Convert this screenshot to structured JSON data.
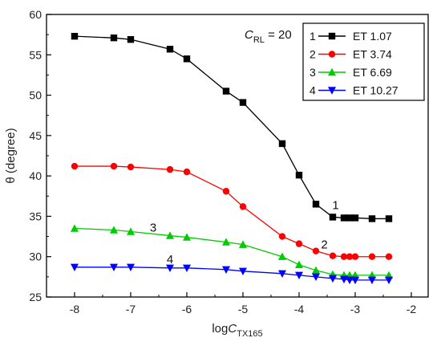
{
  "chart_data": {
    "type": "line",
    "xlabel": {
      "main": "log",
      "italic": "C",
      "sub": "TX165"
    },
    "ylabel": "θ (degree)",
    "xlim": [
      -8.5,
      -1.7
    ],
    "ylim": [
      25,
      60
    ],
    "xticks": [
      -8,
      -7,
      -6,
      -5,
      -4,
      -3,
      -2
    ],
    "yticks": [
      25,
      30,
      35,
      40,
      45,
      50,
      55,
      60
    ],
    "grid": false,
    "legend_position": "top-right",
    "inner_label": {
      "italic": "C",
      "sub": "RL",
      "rest": " = 20"
    },
    "series": [
      {
        "index": "1",
        "name": "ET 1.07",
        "color": "#000000",
        "marker": "square",
        "x": [
          -8,
          -7.3,
          -7,
          -6.3,
          -6,
          -5.3,
          -5,
          -4.3,
          -4,
          -3.7,
          -3.4,
          -3.2,
          -3.1,
          -3,
          -2.7,
          -2.4
        ],
        "y": [
          57.3,
          57.1,
          56.9,
          55.7,
          54.5,
          50.5,
          49.1,
          44.0,
          40.1,
          36.5,
          34.9,
          34.8,
          34.8,
          34.8,
          34.7,
          34.7
        ]
      },
      {
        "index": "2",
        "name": "ET 3.74",
        "color": "#ff0000",
        "marker": "circle",
        "x": [
          -8,
          -7.3,
          -7,
          -6.3,
          -6,
          -5.3,
          -5,
          -4.3,
          -4,
          -3.7,
          -3.4,
          -3.2,
          -3.1,
          -3,
          -2.7,
          -2.4
        ],
        "y": [
          41.2,
          41.2,
          41.1,
          40.8,
          40.5,
          38.1,
          36.2,
          32.5,
          31.6,
          30.7,
          30.1,
          30.0,
          30.0,
          30.0,
          30.0,
          30.0
        ]
      },
      {
        "index": "3",
        "name": "ET 6.69",
        "color": "#00cc00",
        "marker": "triangle-up",
        "x": [
          -8,
          -7.3,
          -7,
          -6.3,
          -6,
          -5.3,
          -5,
          -4.3,
          -4,
          -3.7,
          -3.4,
          -3.2,
          -3.1,
          -3,
          -2.7,
          -2.4
        ],
        "y": [
          33.5,
          33.3,
          33.1,
          32.6,
          32.4,
          31.8,
          31.5,
          30.0,
          29.0,
          28.3,
          27.8,
          27.7,
          27.7,
          27.7,
          27.7,
          27.7
        ]
      },
      {
        "index": "4",
        "name": "ET 10.27",
        "color": "#0000ff",
        "marker": "triangle-down",
        "x": [
          -8,
          -7.3,
          -7,
          -6.3,
          -6,
          -5.3,
          -5,
          -4.3,
          -4,
          -3.7,
          -3.4,
          -3.2,
          -3.1,
          -3,
          -2.7,
          -2.4
        ],
        "y": [
          28.7,
          28.7,
          28.7,
          28.6,
          28.6,
          28.4,
          28.2,
          27.9,
          27.7,
          27.5,
          27.3,
          27.2,
          27.1,
          27.1,
          27.1,
          27.1
        ]
      }
    ],
    "annotations": [
      {
        "text": "1",
        "x": -3.35,
        "y": 35.9
      },
      {
        "text": "2",
        "x": -3.55,
        "y": 31.0
      },
      {
        "text": "3",
        "x": -6.6,
        "y": 33.1
      },
      {
        "text": "4",
        "x": -6.3,
        "y": 29.2
      }
    ]
  }
}
